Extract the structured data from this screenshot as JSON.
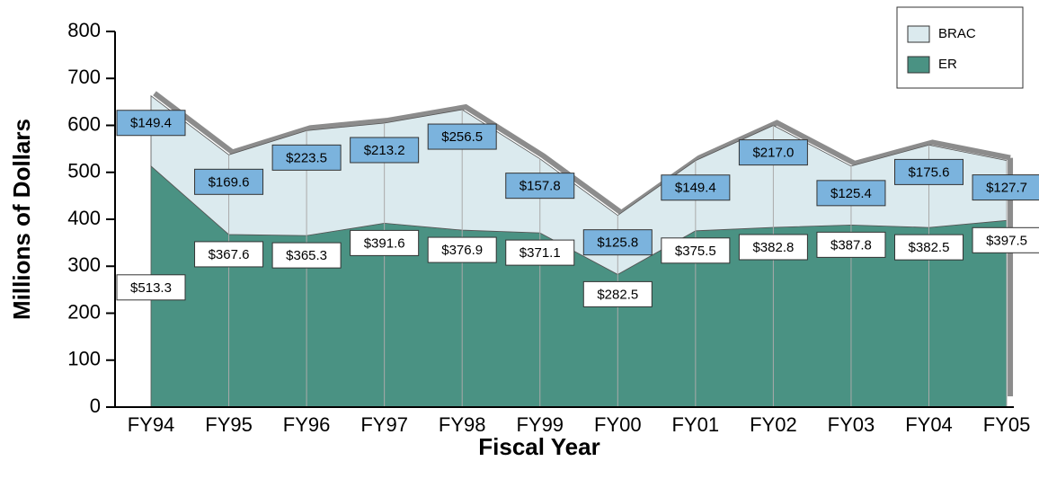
{
  "chart_data": {
    "type": "stacked_area",
    "x_label": "Fiscal Year",
    "y_label": "Millions of Dollars",
    "categories": [
      "FY94",
      "FY95",
      "FY96",
      "FY97",
      "FY98",
      "FY99",
      "FY00",
      "FY01",
      "FY02",
      "FY03",
      "FY04",
      "FY05"
    ],
    "series": [
      {
        "name": "BRAC",
        "color": "#dbeaee",
        "label_color": "#7bb3dd",
        "values": [
          149.4,
          169.6,
          223.5,
          213.2,
          256.5,
          157.8,
          125.8,
          149.4,
          217.0,
          125.4,
          175.6,
          127.7
        ],
        "value_labels": [
          "$149.4",
          "$169.6",
          "$223.5",
          "$213.2",
          "$256.5",
          "$157.8",
          "$125.8",
          "$149.4",
          "$217.0",
          "$125.4",
          "$175.6",
          "$127.7"
        ]
      },
      {
        "name": "ER",
        "color": "#4a9283",
        "label_color": "#ffffff",
        "values": [
          513.3,
          367.6,
          365.3,
          391.6,
          376.9,
          371.1,
          282.5,
          375.5,
          382.8,
          387.8,
          382.5,
          397.5
        ],
        "value_labels": [
          "$513.3",
          "$367.6",
          "$365.3",
          "$391.6",
          "$376.9",
          "$371.1",
          "$282.5",
          "$375.5",
          "$382.8",
          "$387.8",
          "$382.5",
          "$397.5"
        ]
      }
    ],
    "ylim": [
      0,
      800
    ],
    "yticks": [
      0,
      100,
      200,
      300,
      400,
      500,
      600,
      700,
      800
    ],
    "grid": true,
    "legend": "upper right"
  }
}
